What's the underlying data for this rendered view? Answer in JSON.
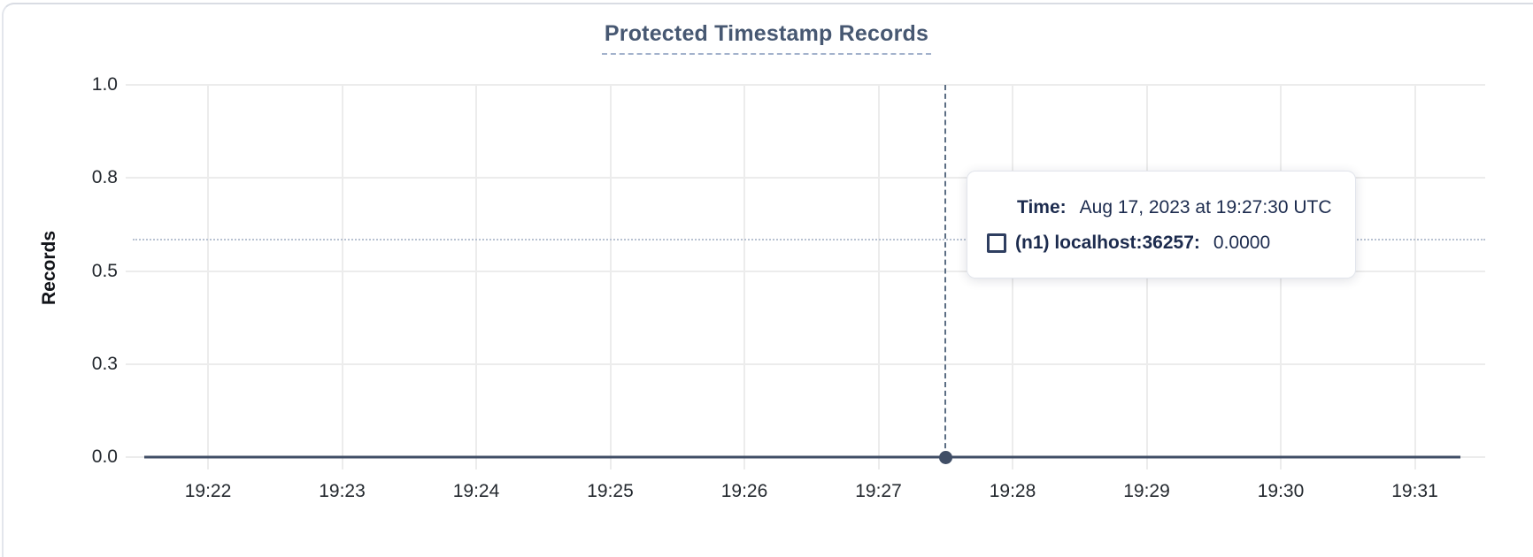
{
  "header": {
    "title": "Protected Timestamp Records"
  },
  "tooltip": {
    "time_label": "Time:",
    "time_value": "Aug 17, 2023 at 19:27:30 UTC",
    "series_label": "(n1) localhost:36257:",
    "series_value": "0.0000",
    "swatch_icon": "hollow-square-icon"
  },
  "colors": {
    "title": "#475872",
    "line": "#404e66",
    "grid": "#ececec",
    "crosshair_vertical": "#5c6e84",
    "crosshair_horizontal": "#b8c2d2",
    "tooltip_text": "#1c2b4e",
    "card_border": "#d9dce3"
  },
  "chart_data": {
    "type": "line",
    "title": "Protected Timestamp Records",
    "xlabel": "",
    "ylabel": "Records",
    "x_ticks": [
      "19:22",
      "19:23",
      "19:24",
      "19:25",
      "19:26",
      "19:27",
      "19:28",
      "19:29",
      "19:30",
      "19:31"
    ],
    "y_ticks": {
      "labels": [
        "1.0",
        "0.8",
        "0.5",
        "0.3",
        "0.0"
      ],
      "values": [
        1.0,
        0.75,
        0.5,
        0.25,
        0.0
      ]
    },
    "ylim": [
      0,
      1
    ],
    "grid": true,
    "legend_position": "none",
    "series": [
      {
        "name": "(n1) localhost:36257",
        "values": [
          0,
          0,
          0,
          0,
          0,
          0,
          0,
          0,
          0,
          0,
          0
        ]
      }
    ],
    "hover": {
      "x_tick": "19:27",
      "x_tick_fraction": 0.5,
      "time": "Aug 17, 2023 at 19:27:30 UTC",
      "value": 0,
      "value_text": "0.0000",
      "y_cursor_fraction": 0.585
    }
  }
}
